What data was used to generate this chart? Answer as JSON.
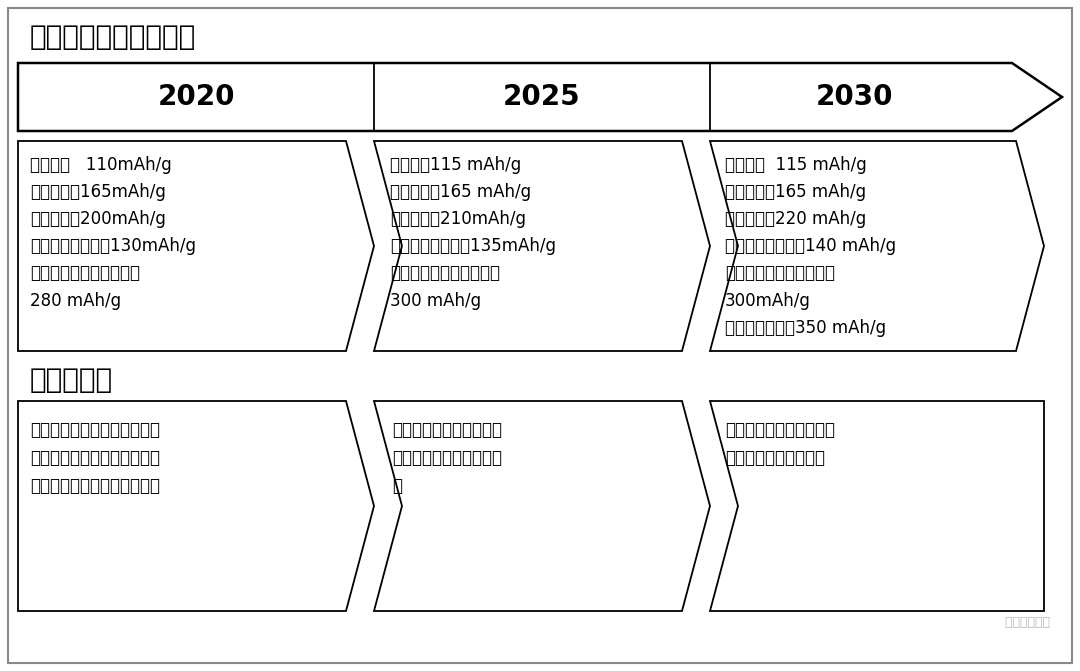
{
  "title1": "正极材料技术路线图：",
  "title2": "性能提升：",
  "years": [
    "2020",
    "2025",
    "2030"
  ],
  "bg_color": "#ffffff",
  "section1_texts": [
    "锰酸锂：   110mAh/g\n磷酸铁锂：165mAh/g\n三元材料：200mAh/g\n高电压镍锰酸锂：130mAh/g\n富锂氧化物固溶体材料：\n280 mAh/g",
    "锰酸锂：115 mAh/g\n磷酸铁锂：165 mAh/g\n三元材料：210mAh/g\n高电压镍锰酸锂：135mAh/g\n富锂氧化物固溶体材料：\n300 mAh/g",
    "锰酸锂：  115 mAh/g\n磷酸铁锂：165 mAh/g\n三元材料：220 mAh/g\n高电压镍锰酸锂：140 mAh/g\n富锂氧化物固溶体材料：\n300mAh/g\n其他新型材料：350 mAh/g"
  ],
  "section2_texts": [
    "通过提高镍含量，提高其比容\n量，通过掺杂、包覆和表面处\n理等技术手段，提高循环性能",
    "提高电池工作电压，提升\n热安全性能和循环稳定性\n能",
    "通过产品改性提高高电压\n使用条件下的循环性能"
  ],
  "watermark": "  锂电联盟会长",
  "font_size_title": 20,
  "font_size_year": 18,
  "font_size_body": 12,
  "font_size_watermark": 9
}
